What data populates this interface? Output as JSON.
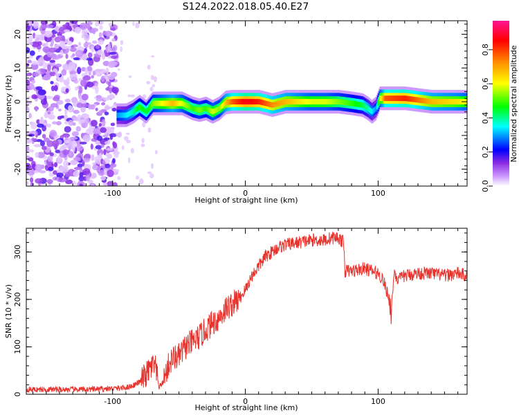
{
  "title": "S124.2022.018.05.40.E27",
  "chart_data": [
    {
      "type": "heatmap",
      "xlabel": "Height of straight line (km)",
      "ylabel": "Frequency (Hz)",
      "xlim": [
        -165,
        167
      ],
      "ylim": [
        -25,
        24
      ],
      "xticks": [
        -100,
        0,
        100
      ],
      "yticks": [
        -20,
        -10,
        0,
        10,
        20
      ],
      "colorbar": {
        "label": "Normalized spectral amplitude",
        "range": [
          0,
          0.97
        ],
        "ticks": [
          "0.0",
          "0.2",
          "0.4",
          "0.6",
          "0.8"
        ],
        "tick_values": [
          0.0,
          0.2,
          0.4,
          0.6,
          0.8
        ],
        "colors": [
          "#ffffff",
          "#8a2be2",
          "#0000ff",
          "#00ffff",
          "#00ff00",
          "#ffff00",
          "#ff7f00",
          "#ff0000",
          "#ff1493"
        ]
      },
      "noise_region_x": [
        -165,
        -97
      ],
      "ridge": {
        "x": [
          -97,
          -90,
          -85,
          -80,
          -75,
          -70,
          -65,
          -55,
          -48,
          -40,
          -35,
          -30,
          -25,
          -20,
          -15,
          -10,
          0,
          10,
          20,
          30,
          40,
          50,
          60,
          70,
          80,
          88,
          92,
          95,
          98,
          101,
          105,
          120,
          140,
          160,
          167
        ],
        "freq": [
          -4,
          -4,
          -3,
          -1.5,
          -3,
          -0.5,
          -0.5,
          -0.5,
          -0.5,
          -2,
          -2.5,
          -2,
          -3,
          -2,
          -0.2,
          0,
          0,
          0,
          -1,
          0,
          0,
          0,
          0,
          0,
          -0.5,
          -1,
          -2,
          -3,
          -2,
          1,
          1,
          1,
          0,
          0,
          0
        ],
        "amplitude": [
          0.3,
          0.35,
          0.4,
          0.5,
          0.45,
          0.55,
          0.6,
          0.7,
          0.6,
          0.5,
          0.55,
          0.5,
          0.6,
          0.55,
          0.7,
          0.8,
          0.9,
          0.85,
          0.75,
          0.7,
          0.65,
          0.6,
          0.6,
          0.55,
          0.5,
          0.45,
          0.4,
          0.35,
          0.3,
          0.6,
          0.8,
          0.85,
          0.7,
          0.65,
          0.6
        ]
      }
    },
    {
      "type": "line",
      "xlabel": "Height of straight line (km)",
      "ylabel": "SNR (10 * v/v)",
      "xlim": [
        -165,
        167
      ],
      "ylim": [
        0,
        350
      ],
      "xticks": [
        -100,
        0,
        100
      ],
      "yticks": [
        0,
        100,
        200,
        300
      ],
      "color": "#e8322c",
      "series": [
        {
          "x": [
            -165,
            -140,
            -120,
            -100,
            -90,
            -85,
            -80,
            -75,
            -70,
            -68,
            -65,
            -62,
            -58,
            -55,
            -50,
            -45,
            -40,
            -35,
            -30,
            -25,
            -20,
            -15,
            -10,
            -5,
            0,
            5,
            10,
            15,
            20,
            25,
            30,
            40,
            50,
            60,
            65,
            70,
            74,
            75,
            80,
            90,
            100,
            104,
            106,
            108,
            110,
            112,
            115,
            120,
            130,
            140,
            150,
            160,
            167
          ],
          "values": [
            10,
            10,
            10,
            12,
            14,
            18,
            25,
            40,
            60,
            58,
            15,
            25,
            60,
            75,
            80,
            100,
            110,
            120,
            135,
            150,
            160,
            180,
            190,
            200,
            220,
            250,
            270,
            290,
            300,
            310,
            315,
            320,
            325,
            325,
            330,
            330,
            320,
            260,
            260,
            265,
            255,
            240,
            220,
            205,
            170,
            260,
            240,
            250,
            255,
            255,
            250,
            255,
            250
          ]
        }
      ]
    }
  ]
}
